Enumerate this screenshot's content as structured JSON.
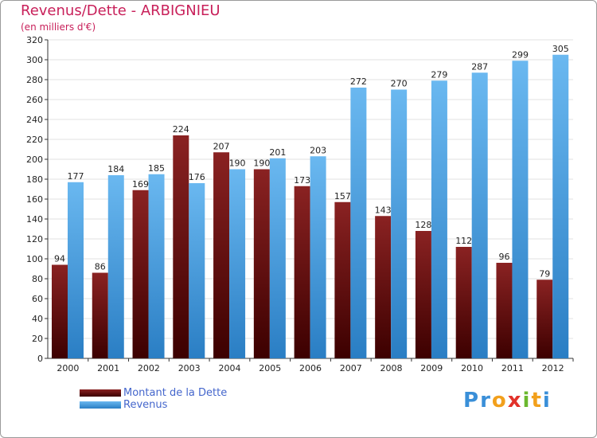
{
  "title": "Revenus/Dette - ARBIGNIEU",
  "subtitle": "(en milliers d'€)",
  "legend": {
    "debt_label": "Montant de la Dette",
    "revenue_label": "Revenus"
  },
  "logo_text": "Proxiti",
  "colors": {
    "title": "#c8205a",
    "debt_top": "#8a2222",
    "debt_bottom": "#3c0000",
    "revenue_top": "#6ab8f0",
    "revenue_bottom": "#2a7ec4",
    "legend_text": "#4466cc",
    "grid": "#e2e2e2"
  },
  "chart_data": {
    "type": "bar",
    "title": "Revenus/Dette - ARBIGNIEU",
    "ylabel": "(en milliers d'€)",
    "xlabel": "",
    "categories": [
      "2000",
      "2001",
      "2002",
      "2003",
      "2004",
      "2005",
      "2006",
      "2007",
      "2008",
      "2009",
      "2010",
      "2011",
      "2012"
    ],
    "series": [
      {
        "name": "Montant de la Dette",
        "values": [
          94,
          86,
          169,
          224,
          207,
          190,
          173,
          157,
          143,
          128,
          112,
          96,
          79
        ]
      },
      {
        "name": "Revenus",
        "values": [
          177,
          184,
          185,
          176,
          190,
          201,
          203,
          272,
          270,
          279,
          287,
          299,
          305
        ]
      }
    ],
    "ylim": [
      0,
      320
    ],
    "ytick_step": 20,
    "grid": true,
    "legend_position": "bottom-left"
  }
}
